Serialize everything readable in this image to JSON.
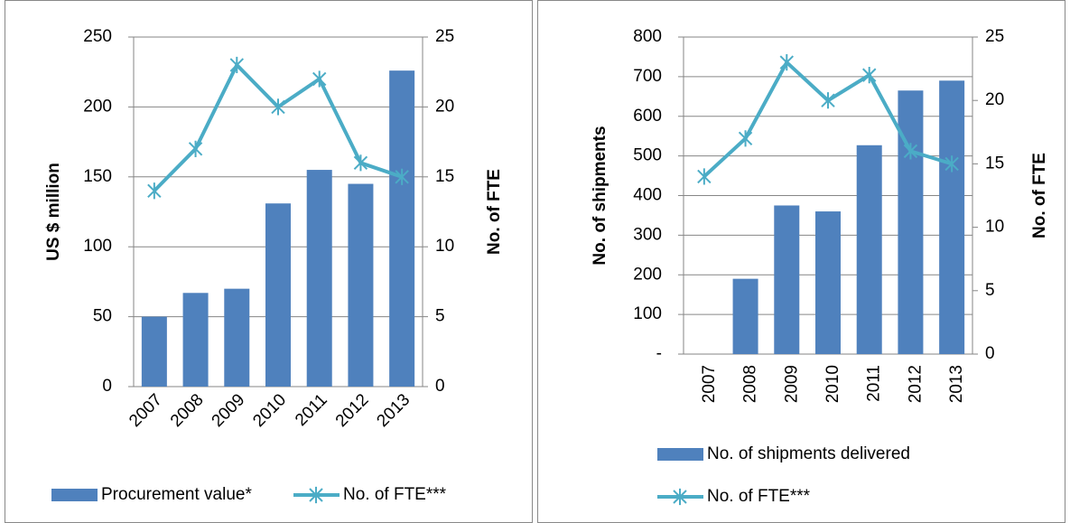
{
  "chart_data": [
    {
      "type": "combo",
      "ylabel": "US $ million",
      "y2label": "No. of FTE",
      "categories": [
        "2007",
        "2008",
        "2009",
        "2010",
        "2011",
        "2012",
        "2013"
      ],
      "series": [
        {
          "name": "Procurement value*",
          "color": "#4f81bd",
          "type": "bar",
          "values": [
            50,
            67,
            70,
            131,
            155,
            145,
            226
          ]
        },
        {
          "name": "No. of FTE***",
          "color": "#4bacc6",
          "type": "line",
          "axis": "y2",
          "values": [
            14,
            17,
            23,
            20,
            22,
            16,
            15
          ]
        }
      ],
      "ylim": [
        0,
        250
      ],
      "yticks": [
        0,
        50,
        100,
        150,
        200,
        250
      ],
      "y2lim": [
        0,
        25
      ],
      "y2ticks": [
        0,
        5,
        10,
        15,
        20,
        25
      ],
      "grid": true
    },
    {
      "type": "combo",
      "ylabel": "No. of shipments",
      "y2label": "No. of FTE",
      "categories": [
        "2007",
        "2008",
        "2009",
        "2010",
        "2011",
        "2012",
        "2013"
      ],
      "series": [
        {
          "name": "No. of shipments delivered",
          "color": "#4f81bd",
          "type": "bar",
          "values": [
            0,
            190,
            375,
            360,
            527,
            665,
            690
          ]
        },
        {
          "name": "No. of FTE***",
          "color": "#4bacc6",
          "type": "line",
          "axis": "y2",
          "values": [
            14,
            17,
            23,
            20,
            22,
            16,
            15
          ]
        }
      ],
      "ylim": [
        0,
        800
      ],
      "yticks": [
        {
          "value": 0,
          "label": "-"
        },
        100,
        200,
        300,
        400,
        500,
        600,
        700,
        800
      ],
      "y2lim": [
        0,
        25
      ],
      "y2ticks": [
        0,
        5,
        10,
        15,
        20,
        25
      ],
      "grid": true
    }
  ]
}
